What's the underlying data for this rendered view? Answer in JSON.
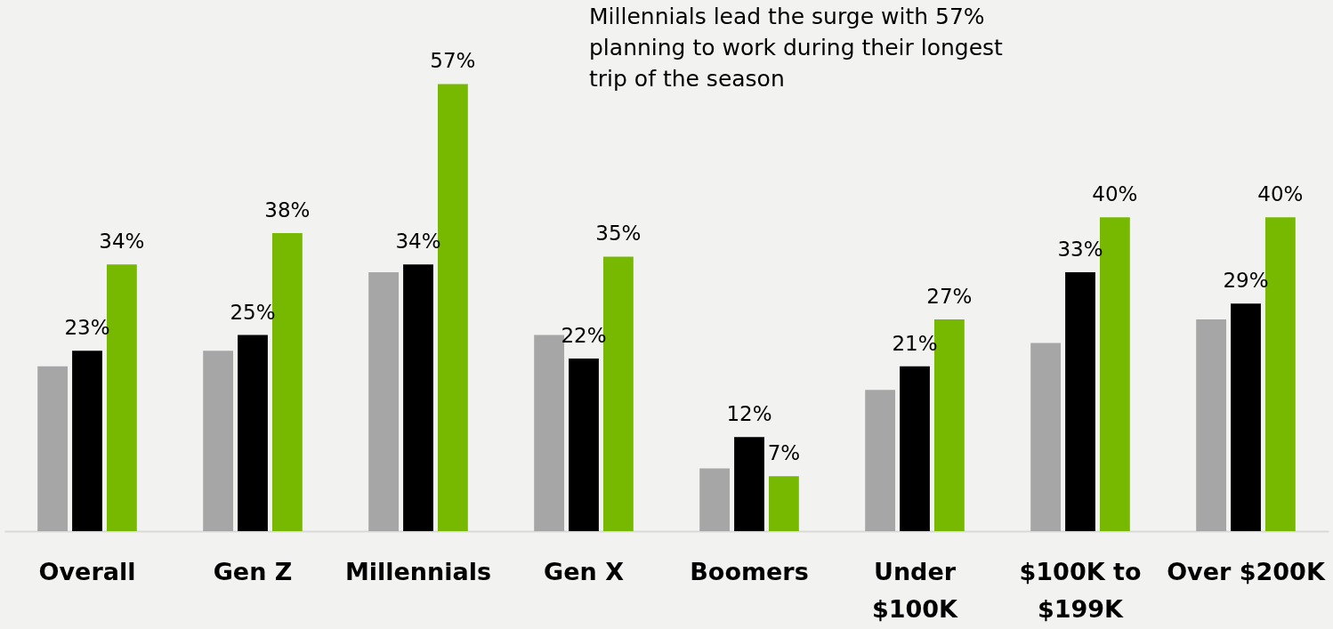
{
  "chart_data": {
    "type": "bar",
    "categories": [
      "Overall",
      "Gen Z",
      "Millennials",
      "Gen X",
      "Boomers",
      "Under $100K",
      "$100K to $199K",
      "Over $200K"
    ],
    "series": [
      {
        "color": "#a6a6a6",
        "values": [
          21,
          23,
          33,
          25,
          8,
          18,
          24,
          27
        ]
      },
      {
        "color": "#000000",
        "values": [
          23,
          25,
          34,
          22,
          12,
          21,
          33,
          29
        ],
        "value_labels": [
          "23%",
          "25%",
          "34%",
          "22%",
          "12%",
          "21%",
          "33%",
          "29%"
        ]
      },
      {
        "color": "#76b900",
        "values": [
          34,
          38,
          57,
          35,
          7,
          27,
          40,
          40
        ],
        "value_labels": [
          "34%",
          "38%",
          "57%",
          "35%",
          "7%",
          "27%",
          "40%",
          "40%"
        ]
      }
    ],
    "annotations": [
      "Millennials lead the surge with 57% planning to work during their longest trip of the season"
    ],
    "tick_labels": "x",
    "grid": false,
    "legend": false
  }
}
